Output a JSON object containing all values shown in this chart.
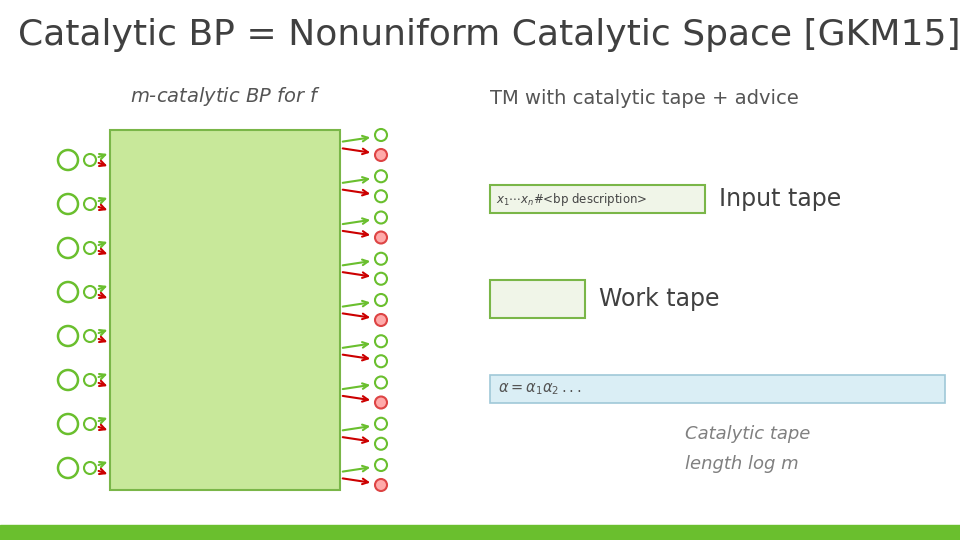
{
  "title": "Catalytic BP = Nonuniform Catalytic Space [GKM15]",
  "title_fontsize": 26,
  "title_color": "#404040",
  "bg_color": "#ffffff",
  "bottom_bar_color": "#6abf2e",
  "left_label_italic": "m",
  "left_label": "-catalytic BP for ",
  "left_label_f": "f",
  "right_label": "TM with catalytic tape + advice",
  "box_fill": "#c8e89a",
  "box_edge": "#7ab648",
  "input_tape_fill": "#f0f5e8",
  "input_tape_edge": "#7ab648",
  "input_tape_label": "Input tape",
  "work_tape_fill": "#f0f5e8",
  "work_tape_edge": "#7ab648",
  "work_tape_label": "Work tape",
  "catalytic_tape_fill": "#daeef5",
  "catalytic_tape_edge": "#a0c8d8",
  "catalytic_tape_note1": "Catalytic tape",
  "catalytic_tape_note2": "length log m",
  "green_circle_color": "#6abf2e",
  "red_circle_fill": "#ffaaaa",
  "red_circle_edge": "#dd4444",
  "green_arrow_color": "#6abf2e",
  "red_arrow_color": "#cc0000",
  "text_color": "#555555",
  "label_color": "#404040"
}
